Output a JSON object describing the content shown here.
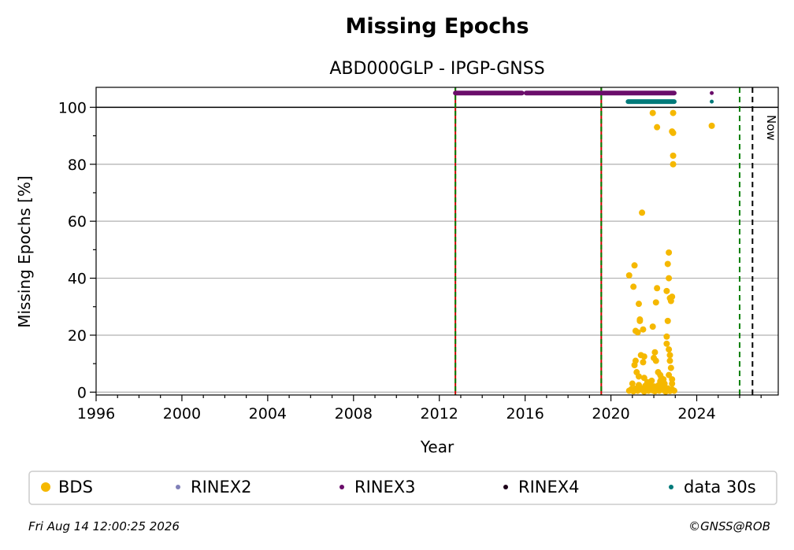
{
  "chart_data": {
    "type": "scatter",
    "title": "Missing Epochs",
    "subtitle": "ABD000GLP - IPGP-GNSS",
    "xlabel": "Year",
    "ylabel": "Missing Epochs [%]",
    "xlim": [
      1996.0,
      2027.8
    ],
    "ylim": [
      -1,
      107
    ],
    "x_ticks": [
      1996,
      2000,
      2004,
      2008,
      2012,
      2016,
      2020,
      2024
    ],
    "y_ticks": [
      0,
      20,
      40,
      60,
      80,
      100
    ],
    "grid": "horizontal",
    "colors": {
      "BDS": "#f5b800",
      "RINEX2": "#8080b8",
      "RINEX3": "#6a0d6a",
      "RINEX4": "#1c0018",
      "data30s": "#007a7a",
      "red_line": "#cc0000",
      "green_line": "#008000",
      "now_line": "#000000"
    },
    "vertical_markers": [
      {
        "x": 2012.75,
        "style": "red-green-dashed"
      },
      {
        "x": 2019.55,
        "style": "red-green-dashed"
      },
      {
        "x": 2026.0,
        "style": "green-dashed"
      },
      {
        "x": 2026.6,
        "style": "black-dashed",
        "label": "Now"
      }
    ],
    "bars": [
      {
        "series": "RINEX3",
        "y": 105,
        "from": 2012.75,
        "to": 2015.85
      },
      {
        "series": "RINEX3",
        "y": 105,
        "from": 2016.05,
        "to": 2019.5
      },
      {
        "series": "RINEX3",
        "y": 105,
        "from": 2019.6,
        "to": 2022.95
      },
      {
        "series": "data 30s",
        "y": 102,
        "from": 2020.8,
        "to": 2022.95
      }
    ],
    "isolated_points": [
      {
        "series": "RINEX3",
        "x": 2024.7,
        "y": 105
      },
      {
        "series": "data 30s",
        "x": 2024.7,
        "y": 102
      }
    ],
    "series": [
      {
        "name": "BDS",
        "points": [
          [
            2020.85,
            41
          ],
          [
            2021.1,
            44.5
          ],
          [
            2021.05,
            37
          ],
          [
            2021.3,
            31
          ],
          [
            2021.35,
            25.5
          ],
          [
            2021.35,
            25
          ],
          [
            2021.45,
            63
          ],
          [
            2021.15,
            21.5
          ],
          [
            2021.25,
            21
          ],
          [
            2021.5,
            22
          ],
          [
            2021.4,
            13
          ],
          [
            2021.55,
            12.5
          ],
          [
            2021.5,
            10.5
          ],
          [
            2021.15,
            11
          ],
          [
            2021.1,
            9.5
          ],
          [
            2021.2,
            7
          ],
          [
            2021.3,
            5.5
          ],
          [
            2021.55,
            5
          ],
          [
            2021.0,
            3
          ],
          [
            2021.3,
            2.5
          ],
          [
            2021.95,
            98
          ],
          [
            2022.15,
            93
          ],
          [
            2022.15,
            36.5
          ],
          [
            2022.1,
            31.5
          ],
          [
            2021.95,
            23
          ],
          [
            2022.05,
            14
          ],
          [
            2022.0,
            12
          ],
          [
            2022.1,
            11
          ],
          [
            2022.2,
            7
          ],
          [
            2022.3,
            6
          ],
          [
            2022.35,
            5
          ],
          [
            2022.45,
            4.5
          ],
          [
            2022.5,
            3
          ],
          [
            2022.6,
            35.5
          ],
          [
            2022.65,
            45
          ],
          [
            2022.7,
            49
          ],
          [
            2022.7,
            40
          ],
          [
            2022.75,
            33
          ],
          [
            2022.85,
            33.5
          ],
          [
            2022.8,
            32
          ],
          [
            2022.65,
            25
          ],
          [
            2022.6,
            19.5
          ],
          [
            2022.6,
            17
          ],
          [
            2022.7,
            15
          ],
          [
            2022.75,
            13
          ],
          [
            2022.75,
            11
          ],
          [
            2022.8,
            8.5
          ],
          [
            2022.7,
            6
          ],
          [
            2022.85,
            4.5
          ],
          [
            2022.85,
            91.5
          ],
          [
            2022.9,
            91
          ],
          [
            2022.9,
            98
          ],
          [
            2022.9,
            83
          ],
          [
            2022.9,
            80
          ],
          [
            2022.85,
            3
          ],
          [
            2024.7,
            93.5
          ],
          [
            2020.85,
            0.5
          ],
          [
            2020.95,
            1
          ],
          [
            2021.05,
            0.3
          ],
          [
            2021.15,
            1.2
          ],
          [
            2021.25,
            0.5
          ],
          [
            2021.35,
            1.5
          ],
          [
            2021.45,
            0.8
          ],
          [
            2021.55,
            0.2
          ],
          [
            2021.65,
            1
          ],
          [
            2021.75,
            0.5
          ],
          [
            2021.85,
            1.8
          ],
          [
            2021.95,
            0.6
          ],
          [
            2022.05,
            0.3
          ],
          [
            2022.15,
            1.1
          ],
          [
            2022.25,
            0.5
          ],
          [
            2022.35,
            1.4
          ],
          [
            2022.45,
            0.7
          ],
          [
            2022.55,
            0.2
          ],
          [
            2022.65,
            1.3
          ],
          [
            2022.75,
            0.4
          ],
          [
            2022.85,
            1
          ],
          [
            2022.95,
            0.5
          ],
          [
            2021.6,
            2.2
          ],
          [
            2021.8,
            2.5
          ],
          [
            2022.0,
            2
          ],
          [
            2022.2,
            2.3
          ],
          [
            2022.4,
            2.1
          ],
          [
            2021.7,
            3.5
          ],
          [
            2021.9,
            4
          ],
          [
            2022.3,
            3.8
          ]
        ]
      },
      {
        "name": "RINEX2",
        "points": []
      },
      {
        "name": "RINEX3",
        "points": []
      },
      {
        "name": "RINEX4",
        "points": []
      },
      {
        "name": "data 30s",
        "points": []
      }
    ],
    "legend": {
      "placement": "bottom",
      "entries": [
        {
          "label": "BDS",
          "color": "#f5b800",
          "marker": "large"
        },
        {
          "label": "RINEX2",
          "color": "#8080b8",
          "marker": "small"
        },
        {
          "label": "RINEX3",
          "color": "#6a0d6a",
          "marker": "small"
        },
        {
          "label": "RINEX4",
          "color": "#1c0018",
          "marker": "small"
        },
        {
          "label": "data 30s",
          "color": "#007a7a",
          "marker": "small"
        }
      ]
    },
    "now_label": "Now",
    "footer_left": "Fri Aug 14 12:00:25 2026",
    "footer_right": "©GNSS@ROB"
  }
}
